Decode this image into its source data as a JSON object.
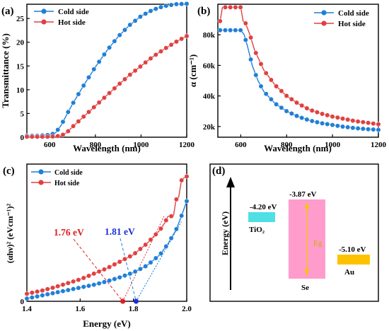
{
  "colors": {
    "cold": "#1f7fd6",
    "hot": "#e04040",
    "tio2": "#4fe0e6",
    "se": "#ff9ccc",
    "au": "#ffc200",
    "gap_arrow": "#f2c700",
    "tag_176": "#e01e1e",
    "tag_181": "#1c2fd6"
  },
  "chart_data": [
    {
      "panel": "(a)",
      "type": "line",
      "xlabel": "Wavelength (nm)",
      "ylabel": "Transmittance (%)",
      "xlim": [
        500,
        1200
      ],
      "ylim": [
        0,
        28
      ],
      "xticks": [
        600,
        800,
        1000,
        1200
      ],
      "yticks": [
        0,
        5,
        10,
        15,
        20,
        25
      ],
      "legend_position": "top-left",
      "series": [
        {
          "name": "Cold side",
          "x": [
            500,
            550,
            600,
            625,
            650,
            675,
            700,
            750,
            800,
            850,
            900,
            950,
            1000,
            1050,
            1100,
            1150,
            1200
          ],
          "y": [
            0.3,
            0.3,
            0.5,
            0.9,
            2.5,
            4.8,
            7.0,
            11.0,
            14.8,
            18.2,
            21.2,
            23.6,
            25.5,
            26.8,
            27.6,
            28.0,
            28.1
          ]
        },
        {
          "name": "Hot side",
          "x": [
            500,
            550,
            600,
            650,
            675,
            700,
            750,
            800,
            850,
            900,
            950,
            1000,
            1050,
            1100,
            1150,
            1200
          ],
          "y": [
            0.1,
            0.1,
            0.1,
            0.3,
            1.0,
            2.2,
            4.4,
            6.6,
            8.8,
            11.0,
            13.1,
            15.0,
            16.9,
            18.5,
            20.0,
            21.3
          ]
        }
      ]
    },
    {
      "panel": "(b)",
      "type": "line",
      "xlabel": "Wavelength (nm)",
      "ylabel": "α (cm⁻¹)",
      "xlim": [
        500,
        1200
      ],
      "ylim": [
        13000,
        100000
      ],
      "xticks": [
        600,
        800,
        1000,
        1200
      ],
      "ytick_values": [
        20000,
        40000,
        60000,
        80000
      ],
      "ytick_labels": [
        "20k",
        "40k",
        "60k",
        "80k"
      ],
      "legend_position": "top-right",
      "series": [
        {
          "name": "Cold side",
          "x": [
            510,
            600,
            615,
            630,
            650,
            675,
            700,
            750,
            800,
            850,
            900,
            950,
            1000,
            1050,
            1100,
            1150,
            1200
          ],
          "y": [
            83000,
            83000,
            80000,
            72000,
            60000,
            50000,
            43000,
            35000,
            30000,
            26500,
            24000,
            22200,
            21000,
            19800,
            18900,
            18300,
            17800
          ]
        },
        {
          "name": "Hot side",
          "x": [
            510,
            520,
            600,
            610,
            620,
            640,
            660,
            700,
            750,
            800,
            850,
            900,
            950,
            1000,
            1050,
            1100,
            1150,
            1200
          ],
          "y": [
            89000,
            98000,
            98000,
            89000,
            88000,
            80000,
            70000,
            57000,
            47000,
            40000,
            35000,
            31000,
            28500,
            26500,
            25000,
            23500,
            22500,
            21500
          ]
        }
      ]
    },
    {
      "panel": "(c)",
      "type": "line",
      "xlabel": "Energy (eV)",
      "ylabel": "(αhν)² (eVcm⁻¹)²",
      "xlim": [
        1.4,
        2.0
      ],
      "ylim": [
        0,
        1.0
      ],
      "xticks": [
        1.4,
        1.6,
        1.8,
        2.0
      ],
      "ytick_values": [
        0
      ],
      "ytick_labels": [
        "0"
      ],
      "legend_position": "top-left",
      "series": [
        {
          "name": "Cold side",
          "x": [
            1.4,
            1.45,
            1.5,
            1.55,
            1.6,
            1.65,
            1.7,
            1.75,
            1.8,
            1.85,
            1.9,
            1.93,
            1.96,
            1.98,
            2.0
          ],
          "y": [
            0.02,
            0.04,
            0.06,
            0.08,
            0.1,
            0.12,
            0.145,
            0.175,
            0.21,
            0.26,
            0.34,
            0.42,
            0.52,
            0.62,
            0.73
          ]
        },
        {
          "name": "Hot side",
          "x": [
            1.4,
            1.45,
            1.5,
            1.55,
            1.6,
            1.65,
            1.7,
            1.75,
            1.8,
            1.85,
            1.88,
            1.9,
            1.92,
            1.93,
            1.95,
            1.96,
            1.97,
            1.98,
            1.99,
            2.0
          ],
          "y": [
            0.055,
            0.075,
            0.1,
            0.13,
            0.16,
            0.2,
            0.24,
            0.29,
            0.34,
            0.42,
            0.48,
            0.52,
            0.58,
            0.62,
            0.62,
            0.74,
            0.76,
            0.88,
            0.9,
            0.91
          ]
        }
      ],
      "tangent_intercepts": [
        {
          "label": "1.76 eV",
          "value": 1.76,
          "series": "Hot side"
        },
        {
          "label": "1.81 eV",
          "value": 1.81,
          "series": "Cold side"
        }
      ]
    },
    {
      "panel": "(d)",
      "type": "diagram",
      "axis_label": "Energy (eV)",
      "levels": [
        {
          "material": "TiO₂",
          "value_label": "-4.20 eV"
        },
        {
          "material": "Se",
          "value_label": "-3.87 eV",
          "gap_label": "Eg"
        },
        {
          "material": "Au",
          "value_label": "-5.10 eV"
        }
      ]
    }
  ]
}
